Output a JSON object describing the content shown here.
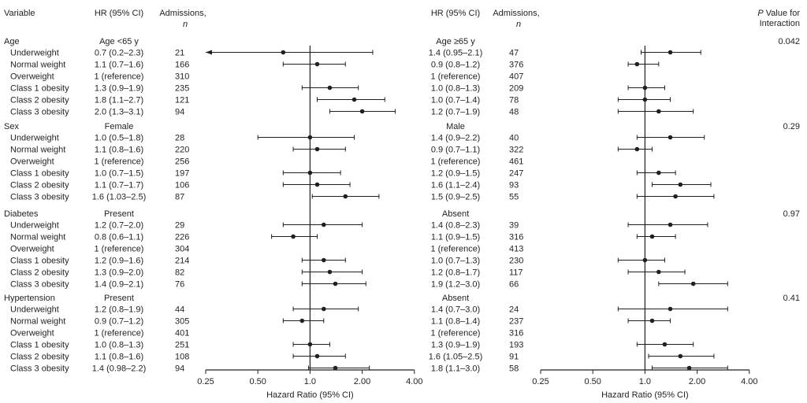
{
  "headers": {
    "variable": "Variable",
    "hr_left": "HR (95% CI)",
    "adm_left": "Admissions,",
    "adm_left_n": "n",
    "hr_right": "HR (95% CI)",
    "adm_right": "Admissions,",
    "adm_right_n": "n",
    "p_value_line1_italic": "P",
    "p_value_line1": " Value for",
    "p_value_line2": "Interaction"
  },
  "chart_data": {
    "type": "forest",
    "xscale": "log2",
    "xlabel": "Hazard Ratio (95% CI)",
    "xticks": [
      "0.25",
      "0.50",
      "1.0",
      "2.00",
      "4.00"
    ],
    "xtick_values": [
      0.25,
      0.5,
      1.0,
      2.0,
      4.0
    ],
    "xlim": [
      0.25,
      4.0
    ],
    "reference_line": 1.0,
    "groups": [
      {
        "variable": "Age",
        "p_interaction": "0.042",
        "left": {
          "subgroup": "Age <65 y",
          "rows": [
            {
              "label": "Underweight",
              "hr_text": "0.7 (0.2–2.3)",
              "n": "21",
              "hr": 0.7,
              "lo": 0.2,
              "hi": 2.3
            },
            {
              "label": "Normal weight",
              "hr_text": "1.1 (0.7–1.6)",
              "n": "166",
              "hr": 1.1,
              "lo": 0.7,
              "hi": 1.6
            },
            {
              "label": "Overweight",
              "hr_text": "1 (reference)",
              "n": "310",
              "hr": null,
              "lo": null,
              "hi": null
            },
            {
              "label": "Class 1 obesity",
              "hr_text": "1.3 (0.9–1.9)",
              "n": "235",
              "hr": 1.3,
              "lo": 0.9,
              "hi": 1.9
            },
            {
              "label": "Class 2 obesity",
              "hr_text": "1.8 (1.1–2.7)",
              "n": "121",
              "hr": 1.8,
              "lo": 1.1,
              "hi": 2.7
            },
            {
              "label": "Class 3 obesity",
              "hr_text": "2.0 (1.3–3.1)",
              "n": "94",
              "hr": 2.0,
              "lo": 1.3,
              "hi": 3.1
            }
          ]
        },
        "right": {
          "subgroup": "Age ≥65 y",
          "rows": [
            {
              "hr_text": "1.4 (0.95–2.1)",
              "n": "47",
              "hr": 1.4,
              "lo": 0.95,
              "hi": 2.1
            },
            {
              "hr_text": "0.9 (0.8–1.2)",
              "n": "376",
              "hr": 0.9,
              "lo": 0.8,
              "hi": 1.2
            },
            {
              "hr_text": "1 (reference)",
              "n": "407",
              "hr": null,
              "lo": null,
              "hi": null
            },
            {
              "hr_text": "1.0 (0.8–1.3)",
              "n": "209",
              "hr": 1.0,
              "lo": 0.8,
              "hi": 1.3
            },
            {
              "hr_text": "1.0 (0.7–1.4)",
              "n": "78",
              "hr": 1.0,
              "lo": 0.7,
              "hi": 1.4
            },
            {
              "hr_text": "1.2 (0.7–1.9)",
              "n": "48",
              "hr": 1.2,
              "lo": 0.7,
              "hi": 1.9
            }
          ]
        }
      },
      {
        "variable": "Sex",
        "p_interaction": "0.29",
        "left": {
          "subgroup": "Female",
          "rows": [
            {
              "label": "Underweight",
              "hr_text": "1.0 (0.5–1.8)",
              "n": "28",
              "hr": 1.0,
              "lo": 0.5,
              "hi": 1.8
            },
            {
              "label": "Normal weight",
              "hr_text": "1.1 (0.8–1.6)",
              "n": "220",
              "hr": 1.1,
              "lo": 0.8,
              "hi": 1.6
            },
            {
              "label": "Overweight",
              "hr_text": "1 (reference)",
              "n": "256",
              "hr": null,
              "lo": null,
              "hi": null
            },
            {
              "label": "Class 1 obesity",
              "hr_text": "1.0 (0.7–1.5)",
              "n": "197",
              "hr": 1.0,
              "lo": 0.7,
              "hi": 1.5
            },
            {
              "label": "Class 2 obesity",
              "hr_text": "1.1 (0.7–1.7)",
              "n": "106",
              "hr": 1.1,
              "lo": 0.7,
              "hi": 1.7
            },
            {
              "label": "Class 3 obesity",
              "hr_text": "1.6 (1.03–2.5)",
              "n": "87",
              "hr": 1.6,
              "lo": 1.03,
              "hi": 2.5
            }
          ]
        },
        "right": {
          "subgroup": "Male",
          "rows": [
            {
              "hr_text": "1.4 (0.9–2.2)",
              "n": "40",
              "hr": 1.4,
              "lo": 0.9,
              "hi": 2.2
            },
            {
              "hr_text": "0.9 (0.7–1.1)",
              "n": "322",
              "hr": 0.9,
              "lo": 0.7,
              "hi": 1.1
            },
            {
              "hr_text": "1 (reference)",
              "n": "461",
              "hr": null,
              "lo": null,
              "hi": null
            },
            {
              "hr_text": "1.2 (0.9–1.5)",
              "n": "247",
              "hr": 1.2,
              "lo": 0.9,
              "hi": 1.5
            },
            {
              "hr_text": "1.6 (1.1–2.4)",
              "n": "93",
              "hr": 1.6,
              "lo": 1.1,
              "hi": 2.4
            },
            {
              "hr_text": "1.5 (0.9–2.5)",
              "n": "55",
              "hr": 1.5,
              "lo": 0.9,
              "hi": 2.5
            }
          ]
        }
      },
      {
        "variable": "Diabetes",
        "p_interaction": "0.97",
        "left": {
          "subgroup": "Present",
          "rows": [
            {
              "label": "Underweight",
              "hr_text": "1.2 (0.7–2.0)",
              "n": "29",
              "hr": 1.2,
              "lo": 0.7,
              "hi": 2.0
            },
            {
              "label": "Normal weight",
              "hr_text": "0.8 (0.6–1.1)",
              "n": "226",
              "hr": 0.8,
              "lo": 0.6,
              "hi": 1.1
            },
            {
              "label": "Overweight",
              "hr_text": "1 (reference)",
              "n": "304",
              "hr": null,
              "lo": null,
              "hi": null
            },
            {
              "label": "Class 1 obesity",
              "hr_text": "1.2 (0.9–1.6)",
              "n": "214",
              "hr": 1.2,
              "lo": 0.9,
              "hi": 1.6
            },
            {
              "label": "Class 2 obesity",
              "hr_text": "1.3 (0.9–2.0)",
              "n": "82",
              "hr": 1.3,
              "lo": 0.9,
              "hi": 2.0
            },
            {
              "label": "Class 3 obesity",
              "hr_text": "1.4 (0.9–2.1)",
              "n": "76",
              "hr": 1.4,
              "lo": 0.9,
              "hi": 2.1
            }
          ]
        },
        "right": {
          "subgroup": "Absent",
          "rows": [
            {
              "hr_text": "1.4 (0.8–2.3)",
              "n": "39",
              "hr": 1.4,
              "lo": 0.8,
              "hi": 2.3
            },
            {
              "hr_text": "1.1 (0.9–1.5)",
              "n": "316",
              "hr": 1.1,
              "lo": 0.9,
              "hi": 1.5
            },
            {
              "hr_text": "1 (reference)",
              "n": "413",
              "hr": null,
              "lo": null,
              "hi": null
            },
            {
              "hr_text": "1.0 (0.7–1.3)",
              "n": "230",
              "hr": 1.0,
              "lo": 0.7,
              "hi": 1.3
            },
            {
              "hr_text": "1.2 (0.8–1.7)",
              "n": "117",
              "hr": 1.2,
              "lo": 0.8,
              "hi": 1.7
            },
            {
              "hr_text": "1.9 (1.2–3.0)",
              "n": "66",
              "hr": 1.9,
              "lo": 1.2,
              "hi": 3.0
            }
          ]
        }
      },
      {
        "variable": "Hypertension",
        "p_interaction": "0.41",
        "left": {
          "subgroup": "Present",
          "rows": [
            {
              "label": "Underweight",
              "hr_text": "1.2 (0.8–1.9)",
              "n": "44",
              "hr": 1.2,
              "lo": 0.8,
              "hi": 1.9
            },
            {
              "label": "Normal weight",
              "hr_text": "0.9 (0.7–1.2)",
              "n": "305",
              "hr": 0.9,
              "lo": 0.7,
              "hi": 1.2
            },
            {
              "label": "Overweight",
              "hr_text": "1 (reference)",
              "n": "401",
              "hr": null,
              "lo": null,
              "hi": null
            },
            {
              "label": "Class 1 obesity",
              "hr_text": "1.0 (0.8–1.3)",
              "n": "251",
              "hr": 1.0,
              "lo": 0.8,
              "hi": 1.3
            },
            {
              "label": "Class 2 obesity",
              "hr_text": "1.1 (0.8–1.6)",
              "n": "108",
              "hr": 1.1,
              "lo": 0.8,
              "hi": 1.6
            },
            {
              "label": "Class 3 obesity",
              "hr_text": "1.4 (0.98–2.2)",
              "n": "94",
              "hr": 1.4,
              "lo": 0.98,
              "hi": 2.2
            }
          ]
        },
        "right": {
          "subgroup": "Absent",
          "rows": [
            {
              "hr_text": "1.4 (0.7–3.0)",
              "n": "24",
              "hr": 1.4,
              "lo": 0.7,
              "hi": 3.0
            },
            {
              "hr_text": "1.1 (0.8–1.4)",
              "n": "237",
              "hr": 1.1,
              "lo": 0.8,
              "hi": 1.4
            },
            {
              "hr_text": "1 (reference)",
              "n": "316",
              "hr": null,
              "lo": null,
              "hi": null
            },
            {
              "hr_text": "1.3 (0.9–1.9)",
              "n": "193",
              "hr": 1.3,
              "lo": 0.9,
              "hi": 1.9
            },
            {
              "hr_text": "1.6 (1.05–2.5)",
              "n": "91",
              "hr": 1.6,
              "lo": 1.05,
              "hi": 2.5
            },
            {
              "hr_text": "1.8 (1.1–3.0)",
              "n": "58",
              "hr": 1.8,
              "lo": 1.1,
              "hi": 3.0
            }
          ]
        }
      }
    ]
  }
}
